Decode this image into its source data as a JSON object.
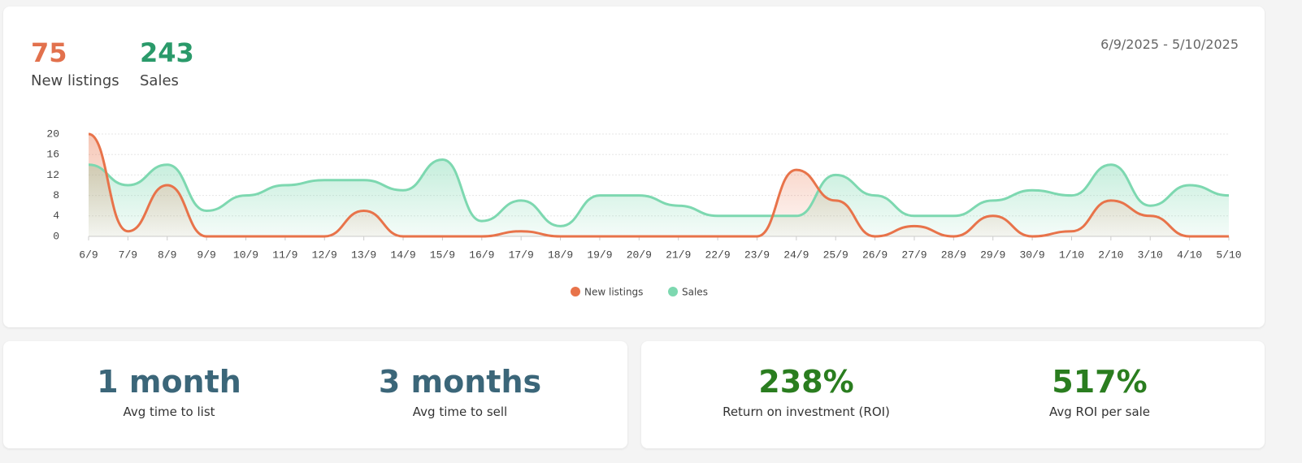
{
  "summary": [
    {
      "value": 75,
      "label": "New listings"
    },
    {
      "value": 243,
      "label": "Sales"
    }
  ],
  "date_range": "6/9/2025 - 5/10/2025",
  "chart_data": {
    "type": "area",
    "categories": [
      "6/9",
      "7/9",
      "8/9",
      "9/9",
      "10/9",
      "11/9",
      "12/9",
      "13/9",
      "14/9",
      "15/9",
      "16/9",
      "17/9",
      "18/9",
      "19/9",
      "20/9",
      "21/9",
      "22/9",
      "23/9",
      "24/9",
      "25/9",
      "26/9",
      "27/9",
      "28/9",
      "29/9",
      "30/9",
      "1/10",
      "2/10",
      "3/10",
      "4/10",
      "5/10"
    ],
    "series": [
      {
        "name": "New listings",
        "color": "#e8734a",
        "values": [
          20,
          1,
          10,
          0,
          0,
          0,
          0,
          5,
          0,
          0,
          0,
          1,
          0,
          0,
          0,
          0,
          0,
          0,
          13,
          7,
          0,
          2,
          0,
          4,
          0,
          1,
          7,
          4,
          0,
          0
        ]
      },
      {
        "name": "Sales",
        "color": "#7dd8b0",
        "values": [
          14,
          10,
          14,
          5,
          8,
          10,
          11,
          11,
          9,
          15,
          3,
          7,
          2,
          8,
          8,
          6,
          4,
          4,
          4,
          12,
          8,
          4,
          4,
          7,
          9,
          8,
          14,
          6,
          10,
          8
        ]
      }
    ],
    "ylim": [
      0,
      20
    ],
    "yticks": [
      0,
      4,
      8,
      12,
      16,
      20
    ],
    "grid": true,
    "legend": "bottom"
  },
  "stats": [
    {
      "value": "1 month",
      "label": "Avg time to list"
    },
    {
      "value": "3 months",
      "label": "Avg time to sell"
    },
    {
      "value": "238%",
      "label": "Return on investment (ROI)"
    },
    {
      "value": "517%",
      "label": "Avg ROI per sale"
    }
  ]
}
